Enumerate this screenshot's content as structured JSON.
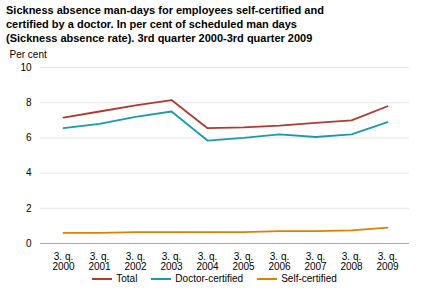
{
  "chart_data": {
    "type": "line",
    "title": "Sickness absence man-days for employees self-certified and\ncertified by a doctor. In per cent of scheduled man days\n(Sickness absence rate). 3rd quarter 2000-3rd quarter 2009",
    "y_label": "Per cent",
    "categories": [
      "3. q.\n2000",
      "3. q.\n2001",
      "3. q.\n2002",
      "3. q.\n2003",
      "3. q.\n2004",
      "3. q.\n2005",
      "3. q.\n2006",
      "3. q.\n2007",
      "3. q.\n2008",
      "3. q.\n2009"
    ],
    "series": [
      {
        "name": "Total",
        "color": "#b03a2e",
        "values": [
          7.15,
          7.5,
          7.85,
          8.15,
          6.55,
          6.6,
          6.7,
          6.85,
          7.0,
          7.8
        ]
      },
      {
        "name": "Doctor-certified",
        "color": "#1a9aaa",
        "values": [
          6.55,
          6.8,
          7.2,
          7.5,
          5.85,
          6.0,
          6.2,
          6.05,
          6.2,
          6.9
        ]
      },
      {
        "name": "Self-certified",
        "color": "#e08000",
        "values": [
          0.6,
          0.6,
          0.65,
          0.65,
          0.65,
          0.65,
          0.7,
          0.7,
          0.75,
          0.9
        ]
      }
    ],
    "ylim": [
      0,
      10
    ],
    "yticks": [
      0,
      2,
      4,
      6,
      8,
      10
    ],
    "grid": true,
    "legend": "bottom"
  }
}
